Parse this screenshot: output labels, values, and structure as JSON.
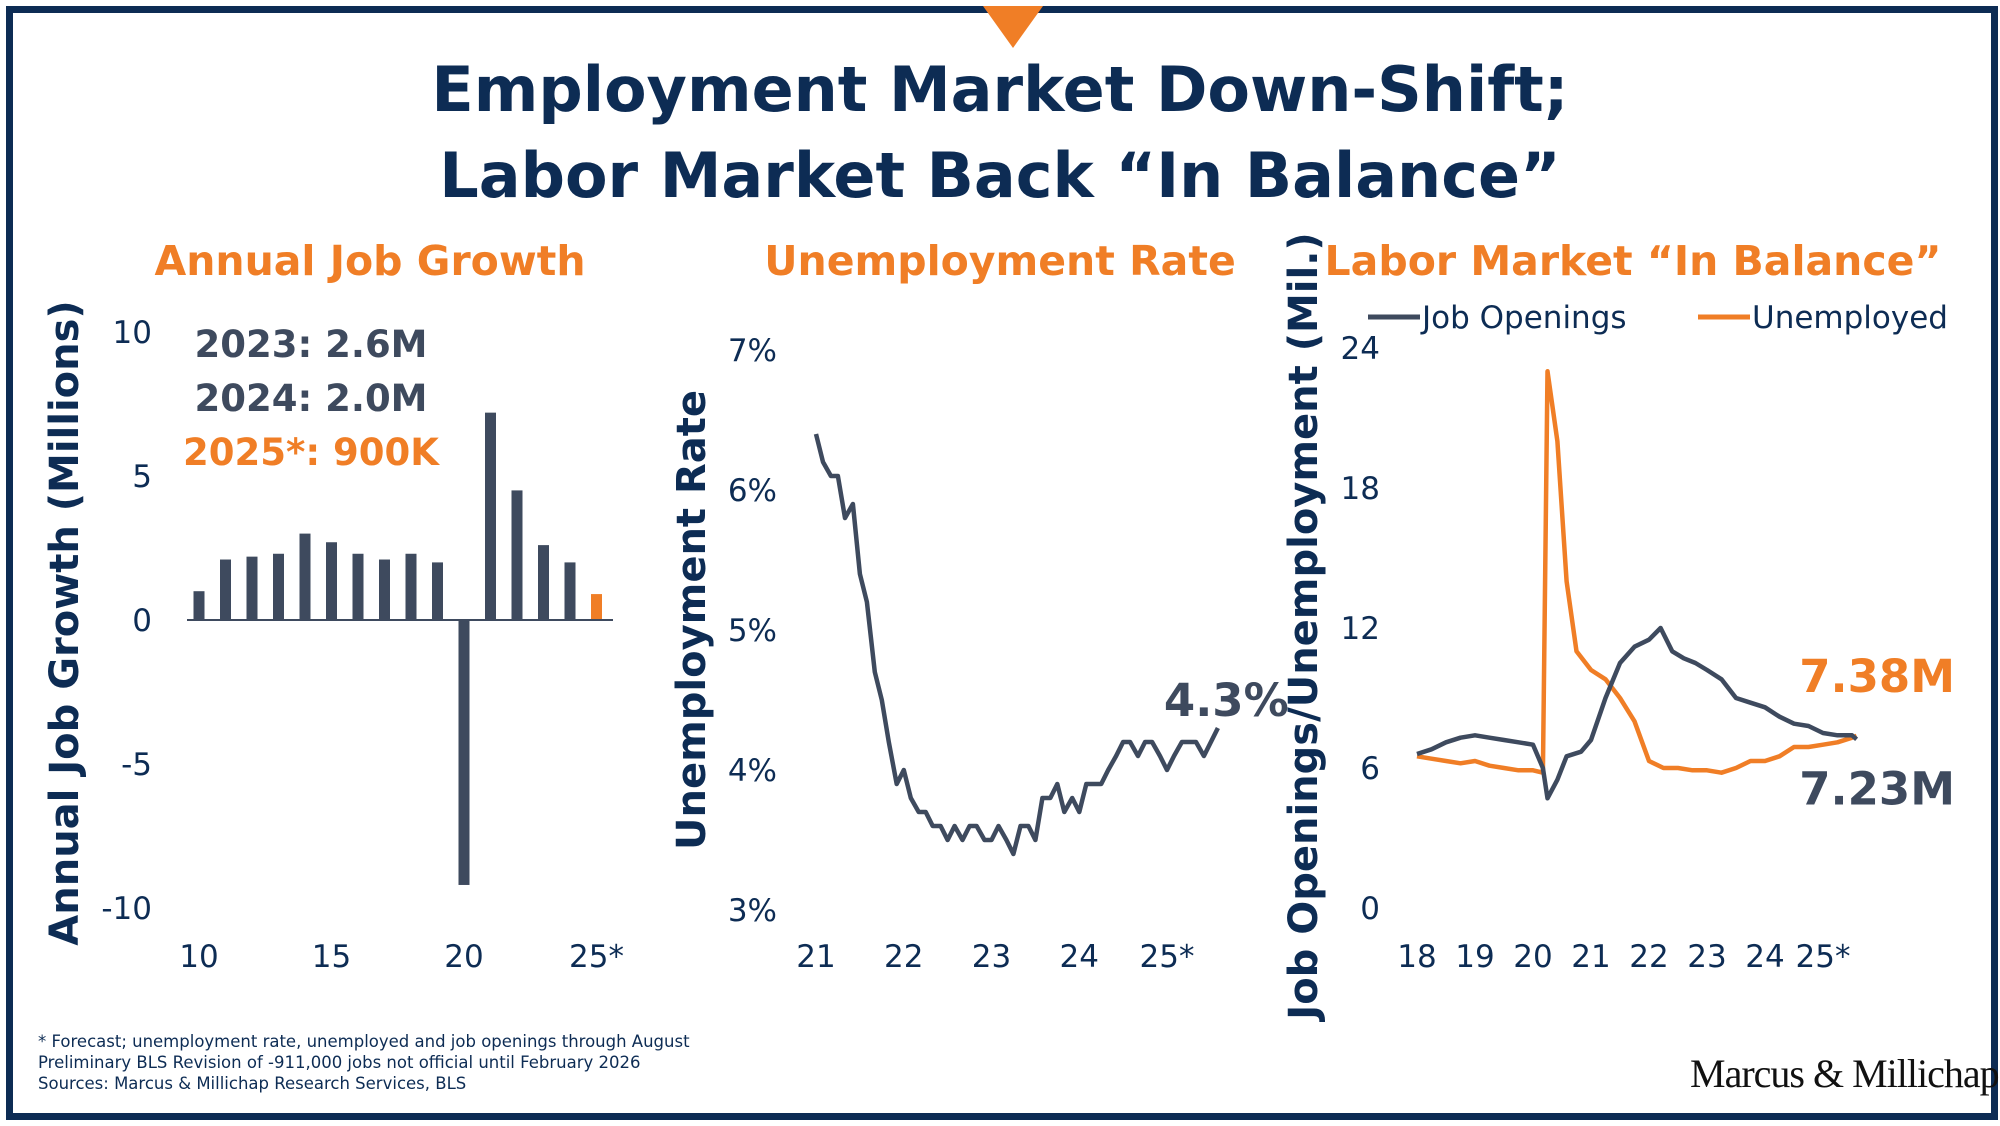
{
  "title": {
    "line1": "Employment Market Down-Shift;",
    "line2": "Labor Market Back “In Balance”"
  },
  "colors": {
    "navy": "#0d2c54",
    "slate": "#3e4a5e",
    "orange": "#f07e26"
  },
  "chart_data": [
    {
      "type": "bar",
      "title": "Annual Job Growth",
      "ylabel": "Annual Job Growth (Millions)",
      "xlabel": "",
      "ylim": [
        -10,
        10
      ],
      "yticks": [
        10,
        5,
        0,
        -5,
        -10
      ],
      "x_tick_labels": [
        "10",
        "15",
        "20",
        "25*"
      ],
      "categories": [
        "2010",
        "2011",
        "2012",
        "2013",
        "2014",
        "2015",
        "2016",
        "2017",
        "2018",
        "2019",
        "2020",
        "2021",
        "2022",
        "2023",
        "2024",
        "2025*"
      ],
      "values": [
        1.0,
        2.1,
        2.2,
        2.3,
        3.0,
        2.7,
        2.3,
        2.1,
        2.3,
        2.0,
        -9.2,
        7.2,
        4.5,
        2.6,
        2.0,
        0.9
      ],
      "highlight_category": "2025*",
      "annotations": [
        "2023: 2.6M",
        "2024: 2.0M",
        "2025*: 900K"
      ]
    },
    {
      "type": "line",
      "title": "Unemployment Rate",
      "ylabel": "Unemployment Rate",
      "xlabel": "",
      "ylim": [
        3,
        7
      ],
      "ytick_labels": [
        "7%",
        "6%",
        "5%",
        "4%",
        "3%"
      ],
      "x_tick_labels": [
        "21",
        "22",
        "23",
        "24",
        "25*"
      ],
      "xlim": [
        2020.93,
        2025.8
      ],
      "series": [
        {
          "values": [
            [
              2021.0,
              6.4
            ],
            [
              2021.08,
              6.2
            ],
            [
              2021.17,
              6.1
            ],
            [
              2021.25,
              6.1
            ],
            [
              2021.33,
              5.8
            ],
            [
              2021.42,
              5.9
            ],
            [
              2021.5,
              5.4
            ],
            [
              2021.58,
              5.2
            ],
            [
              2021.67,
              4.7
            ],
            [
              2021.75,
              4.5
            ],
            [
              2021.83,
              4.2
            ],
            [
              2021.92,
              3.9
            ],
            [
              2022.0,
              4.0
            ],
            [
              2022.08,
              3.8
            ],
            [
              2022.17,
              3.7
            ],
            [
              2022.25,
              3.7
            ],
            [
              2022.33,
              3.6
            ],
            [
              2022.42,
              3.6
            ],
            [
              2022.5,
              3.5
            ],
            [
              2022.58,
              3.6
            ],
            [
              2022.67,
              3.5
            ],
            [
              2022.75,
              3.6
            ],
            [
              2022.83,
              3.6
            ],
            [
              2022.92,
              3.5
            ],
            [
              2023.0,
              3.5
            ],
            [
              2023.08,
              3.6
            ],
            [
              2023.17,
              3.5
            ],
            [
              2023.25,
              3.4
            ],
            [
              2023.33,
              3.6
            ],
            [
              2023.42,
              3.6
            ],
            [
              2023.5,
              3.5
            ],
            [
              2023.58,
              3.8
            ],
            [
              2023.67,
              3.8
            ],
            [
              2023.75,
              3.9
            ],
            [
              2023.83,
              3.7
            ],
            [
              2023.92,
              3.8
            ],
            [
              2024.0,
              3.7
            ],
            [
              2024.08,
              3.9
            ],
            [
              2024.17,
              3.9
            ],
            [
              2024.25,
              3.9
            ],
            [
              2024.33,
              4.0
            ],
            [
              2024.42,
              4.1
            ],
            [
              2024.5,
              4.2
            ],
            [
              2024.58,
              4.2
            ],
            [
              2024.67,
              4.1
            ],
            [
              2024.75,
              4.2
            ],
            [
              2024.83,
              4.2
            ],
            [
              2024.92,
              4.1
            ],
            [
              2025.0,
              4.0
            ],
            [
              2025.08,
              4.1
            ],
            [
              2025.17,
              4.2
            ],
            [
              2025.25,
              4.2
            ],
            [
              2025.33,
              4.2
            ],
            [
              2025.42,
              4.1
            ],
            [
              2025.5,
              4.2
            ],
            [
              2025.58,
              4.3
            ]
          ]
        }
      ],
      "end_label": "4.3%"
    },
    {
      "type": "line",
      "title": "Labor Market “In Balance”",
      "ylabel": "Job Openings/Unemployment (Mil.)",
      "xlabel": "",
      "ylim": [
        0,
        24
      ],
      "yticks": [
        24,
        18,
        12,
        6,
        0
      ],
      "x_tick_labels": [
        "18",
        "19",
        "20",
        "21",
        "22",
        "23",
        "24",
        "25*"
      ],
      "xlim": [
        2017.97,
        2025.95
      ],
      "legend_placement": "top",
      "series": [
        {
          "name": "Job Openings",
          "color": "#3e4a5e",
          "values": [
            [
              2018.0,
              6.6
            ],
            [
              2018.25,
              6.8
            ],
            [
              2018.5,
              7.1
            ],
            [
              2018.75,
              7.3
            ],
            [
              2019.0,
              7.4
            ],
            [
              2019.25,
              7.3
            ],
            [
              2019.5,
              7.2
            ],
            [
              2019.75,
              7.1
            ],
            [
              2020.0,
              7.0
            ],
            [
              2020.17,
              6.0
            ],
            [
              2020.25,
              4.7
            ],
            [
              2020.42,
              5.5
            ],
            [
              2020.58,
              6.5
            ],
            [
              2020.83,
              6.7
            ],
            [
              2021.0,
              7.2
            ],
            [
              2021.25,
              9.0
            ],
            [
              2021.5,
              10.5
            ],
            [
              2021.75,
              11.2
            ],
            [
              2022.0,
              11.5
            ],
            [
              2022.2,
              12.0
            ],
            [
              2022.4,
              11.0
            ],
            [
              2022.6,
              10.7
            ],
            [
              2022.8,
              10.5
            ],
            [
              2023.0,
              10.2
            ],
            [
              2023.25,
              9.8
            ],
            [
              2023.5,
              9.0
            ],
            [
              2023.75,
              8.8
            ],
            [
              2024.0,
              8.6
            ],
            [
              2024.25,
              8.2
            ],
            [
              2024.5,
              7.9
            ],
            [
              2024.75,
              7.8
            ],
            [
              2025.0,
              7.5
            ],
            [
              2025.25,
              7.4
            ],
            [
              2025.5,
              7.4
            ],
            [
              2025.58,
              7.23
            ]
          ],
          "end_label": "7.23M"
        },
        {
          "name": "Unemployed",
          "color": "#f07e26",
          "values": [
            [
              2018.0,
              6.5
            ],
            [
              2018.25,
              6.4
            ],
            [
              2018.5,
              6.3
            ],
            [
              2018.75,
              6.2
            ],
            [
              2019.0,
              6.3
            ],
            [
              2019.25,
              6.1
            ],
            [
              2019.5,
              6.0
            ],
            [
              2019.75,
              5.9
            ],
            [
              2020.0,
              5.9
            ],
            [
              2020.17,
              5.8
            ],
            [
              2020.25,
              23.0
            ],
            [
              2020.42,
              20.0
            ],
            [
              2020.58,
              14.0
            ],
            [
              2020.75,
              11.0
            ],
            [
              2021.0,
              10.2
            ],
            [
              2021.25,
              9.8
            ],
            [
              2021.5,
              9.0
            ],
            [
              2021.75,
              8.0
            ],
            [
              2022.0,
              6.3
            ],
            [
              2022.25,
              6.0
            ],
            [
              2022.5,
              6.0
            ],
            [
              2022.75,
              5.9
            ],
            [
              2023.0,
              5.9
            ],
            [
              2023.25,
              5.8
            ],
            [
              2023.5,
              6.0
            ],
            [
              2023.75,
              6.3
            ],
            [
              2024.0,
              6.3
            ],
            [
              2024.25,
              6.5
            ],
            [
              2024.5,
              6.9
            ],
            [
              2024.75,
              6.9
            ],
            [
              2025.0,
              7.0
            ],
            [
              2025.25,
              7.1
            ],
            [
              2025.5,
              7.3
            ],
            [
              2025.58,
              7.38
            ]
          ],
          "end_label": "7.38M"
        }
      ]
    }
  ],
  "footnotes": [
    "* Forecast; unemployment rate, unemployed and job openings through August",
    "Preliminary BLS Revision  of -911,000 jobs not official until February 2026",
    "Sources: Marcus & Millichap Research Services, BLS"
  ],
  "logo_text": "Marcus & Millichap"
}
